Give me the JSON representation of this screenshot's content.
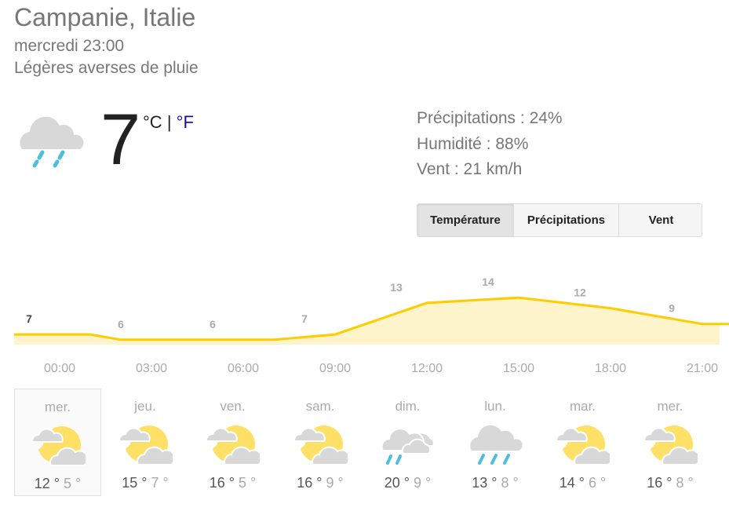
{
  "header": {
    "location": "Campanie, Italie",
    "datetime": "mercredi 23:00",
    "condition": "Légères averses de pluie"
  },
  "current": {
    "temp": "7",
    "unit_c": "°C",
    "separator": "|",
    "unit_f": "°F",
    "icon": "rain-cloud-icon"
  },
  "stats": {
    "precip": "Précipitations : 24%",
    "humidity": "Humidité : 88%",
    "wind": "Vent : 21 km/h"
  },
  "tabs": [
    {
      "label": "Température",
      "active": true
    },
    {
      "label": "Précipitations",
      "active": false
    },
    {
      "label": "Vent",
      "active": false
    }
  ],
  "colors": {
    "line": "#ffcc00",
    "fill": "#fdf4cc",
    "rain": "#4bbfdc",
    "sun": "#ffe066",
    "cloud": "#d8d8d8"
  },
  "chart_data": {
    "type": "area",
    "x": [
      "00:00",
      "03:00",
      "06:00",
      "09:00",
      "12:00",
      "15:00",
      "18:00",
      "21:00"
    ],
    "values": [
      7,
      6,
      6,
      7,
      13,
      14,
      12,
      9
    ],
    "labels": [
      "7",
      "6",
      "6",
      "7",
      "13",
      "14",
      "12",
      "9"
    ]
  },
  "days": [
    {
      "name": "mer.",
      "icon": "partly-cloudy",
      "hi": "12 °",
      "lo": "5 °",
      "selected": true
    },
    {
      "name": "jeu.",
      "icon": "partly-cloudy",
      "hi": "15 °",
      "lo": "7 °"
    },
    {
      "name": "ven.",
      "icon": "partly-cloudy",
      "hi": "16 °",
      "lo": "5 °"
    },
    {
      "name": "sam.",
      "icon": "partly-cloudy",
      "hi": "16 °",
      "lo": "9 °"
    },
    {
      "name": "dim.",
      "icon": "showers",
      "hi": "20 °",
      "lo": "9 °"
    },
    {
      "name": "lun.",
      "icon": "rain",
      "hi": "13 °",
      "lo": "8 °"
    },
    {
      "name": "mar.",
      "icon": "partly-cloudy",
      "hi": "14 °",
      "lo": "6 °"
    },
    {
      "name": "mer.",
      "icon": "partly-cloudy",
      "hi": "16 °",
      "lo": "8 °"
    }
  ]
}
